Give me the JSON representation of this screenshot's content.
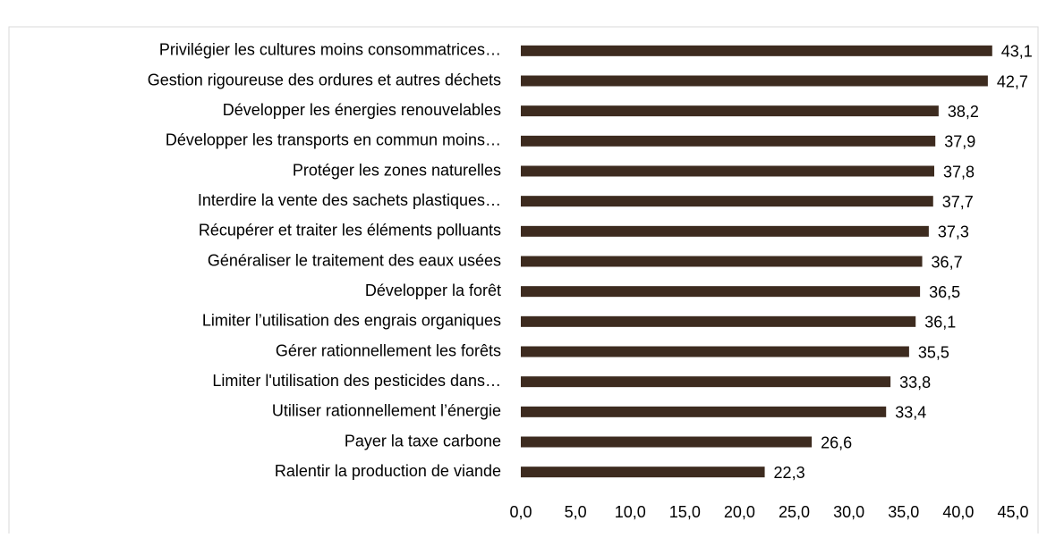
{
  "chart_data": {
    "type": "bar",
    "orientation": "horizontal",
    "color": "#3d2b1f",
    "categories": [
      "Privilégier les cultures moins consommatrices…",
      "Gestion rigoureuse des ordures et autres déchets",
      "Développer les énergies renouvelables",
      "Développer les transports en commun moins…",
      "Protéger les zones naturelles",
      "Interdire la vente des sachets plastiques…",
      "Récupérer et traiter les éléments polluants",
      "Généraliser le traitement des eaux usées",
      "Développer la forêt",
      "Limiter l’utilisation des engrais organiques",
      "Gérer rationnellement les forêts",
      "Limiter l'utilisation des pesticides dans…",
      "Utiliser rationnellement l’énergie",
      "Payer la taxe carbone",
      "Ralentir la production de viande"
    ],
    "values": [
      43.1,
      42.7,
      38.2,
      37.9,
      37.8,
      37.7,
      37.3,
      36.7,
      36.5,
      36.1,
      35.5,
      33.8,
      33.4,
      26.6,
      22.3
    ],
    "value_labels": [
      "43,1",
      "42,7",
      "38,2",
      "37,9",
      "37,8",
      "37,7",
      "37,3",
      "36,7",
      "36,5",
      "36,1",
      "35,5",
      "33,8",
      "33,4",
      "26,6",
      "22,3"
    ],
    "xlim": [
      0,
      45
    ],
    "xticks": [
      {
        "value": 0,
        "label": "0,0"
      },
      {
        "value": 5,
        "label": "5,0"
      },
      {
        "value": 10,
        "label": "10,0"
      },
      {
        "value": 15,
        "label": "15,0"
      },
      {
        "value": 20,
        "label": "20,0"
      },
      {
        "value": 25,
        "label": "25,0"
      },
      {
        "value": 30,
        "label": "30,0"
      },
      {
        "value": 35,
        "label": "35,0"
      },
      {
        "value": 40,
        "label": "40,0"
      },
      {
        "value": 45,
        "label": "45,0"
      }
    ],
    "grid": false
  }
}
